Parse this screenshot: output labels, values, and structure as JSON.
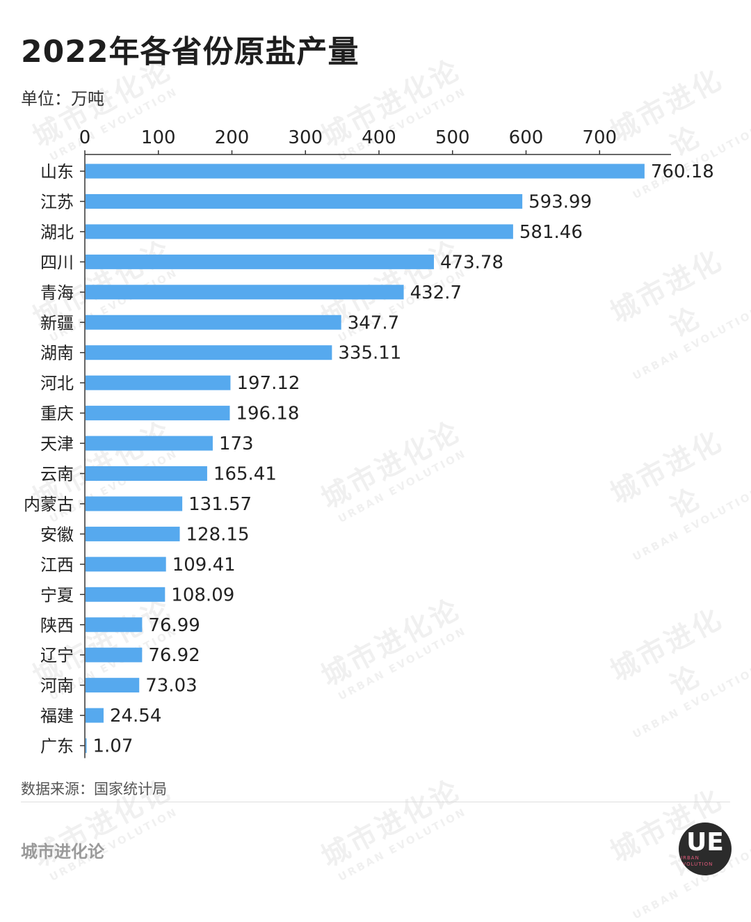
{
  "header": {
    "title": "2022年各省份原盐产量",
    "unit": "单位：万吨"
  },
  "footer": {
    "source": "数据来源：国家统计局",
    "brand": "城市进化论",
    "logo_mark": "UE",
    "logo_sub": "URBAN EVOLUTION"
  },
  "watermark": {
    "cn": "城市进化论",
    "en": "URBAN EVOLUTION"
  },
  "colors": {
    "bar": "#56a9ee",
    "axis": "#333333"
  },
  "chart_data": {
    "type": "bar",
    "orientation": "horizontal",
    "title": "2022年各省份原盐产量",
    "unit": "单位：万吨",
    "categories": [
      "山东",
      "江苏",
      "湖北",
      "四川",
      "青海",
      "新疆",
      "湖南",
      "河北",
      "重庆",
      "天津",
      "云南",
      "内蒙古",
      "安徽",
      "江西",
      "宁夏",
      "陕西",
      "辽宁",
      "河南",
      "福建",
      "广东"
    ],
    "values": [
      760.18,
      593.99,
      581.46,
      473.78,
      432.7,
      347.7,
      335.11,
      197.12,
      196.18,
      173,
      165.41,
      131.57,
      128.15,
      109.41,
      108.09,
      76.99,
      76.92,
      73.03,
      24.54,
      1.07
    ],
    "value_labels": [
      "760.18",
      "593.99",
      "581.46",
      "473.78",
      "432.7",
      "347.7",
      "335.11",
      "197.12",
      "196.18",
      "173",
      "165.41",
      "131.57",
      "128.15",
      "109.41",
      "108.09",
      "76.99",
      "76.92",
      "73.03",
      "24.54",
      "1.07"
    ],
    "xticks": [
      0,
      100,
      200,
      300,
      400,
      500,
      600,
      700
    ],
    "xlim": [
      0,
      800
    ],
    "axis_position": "top",
    "grid": false,
    "legend": "none"
  }
}
